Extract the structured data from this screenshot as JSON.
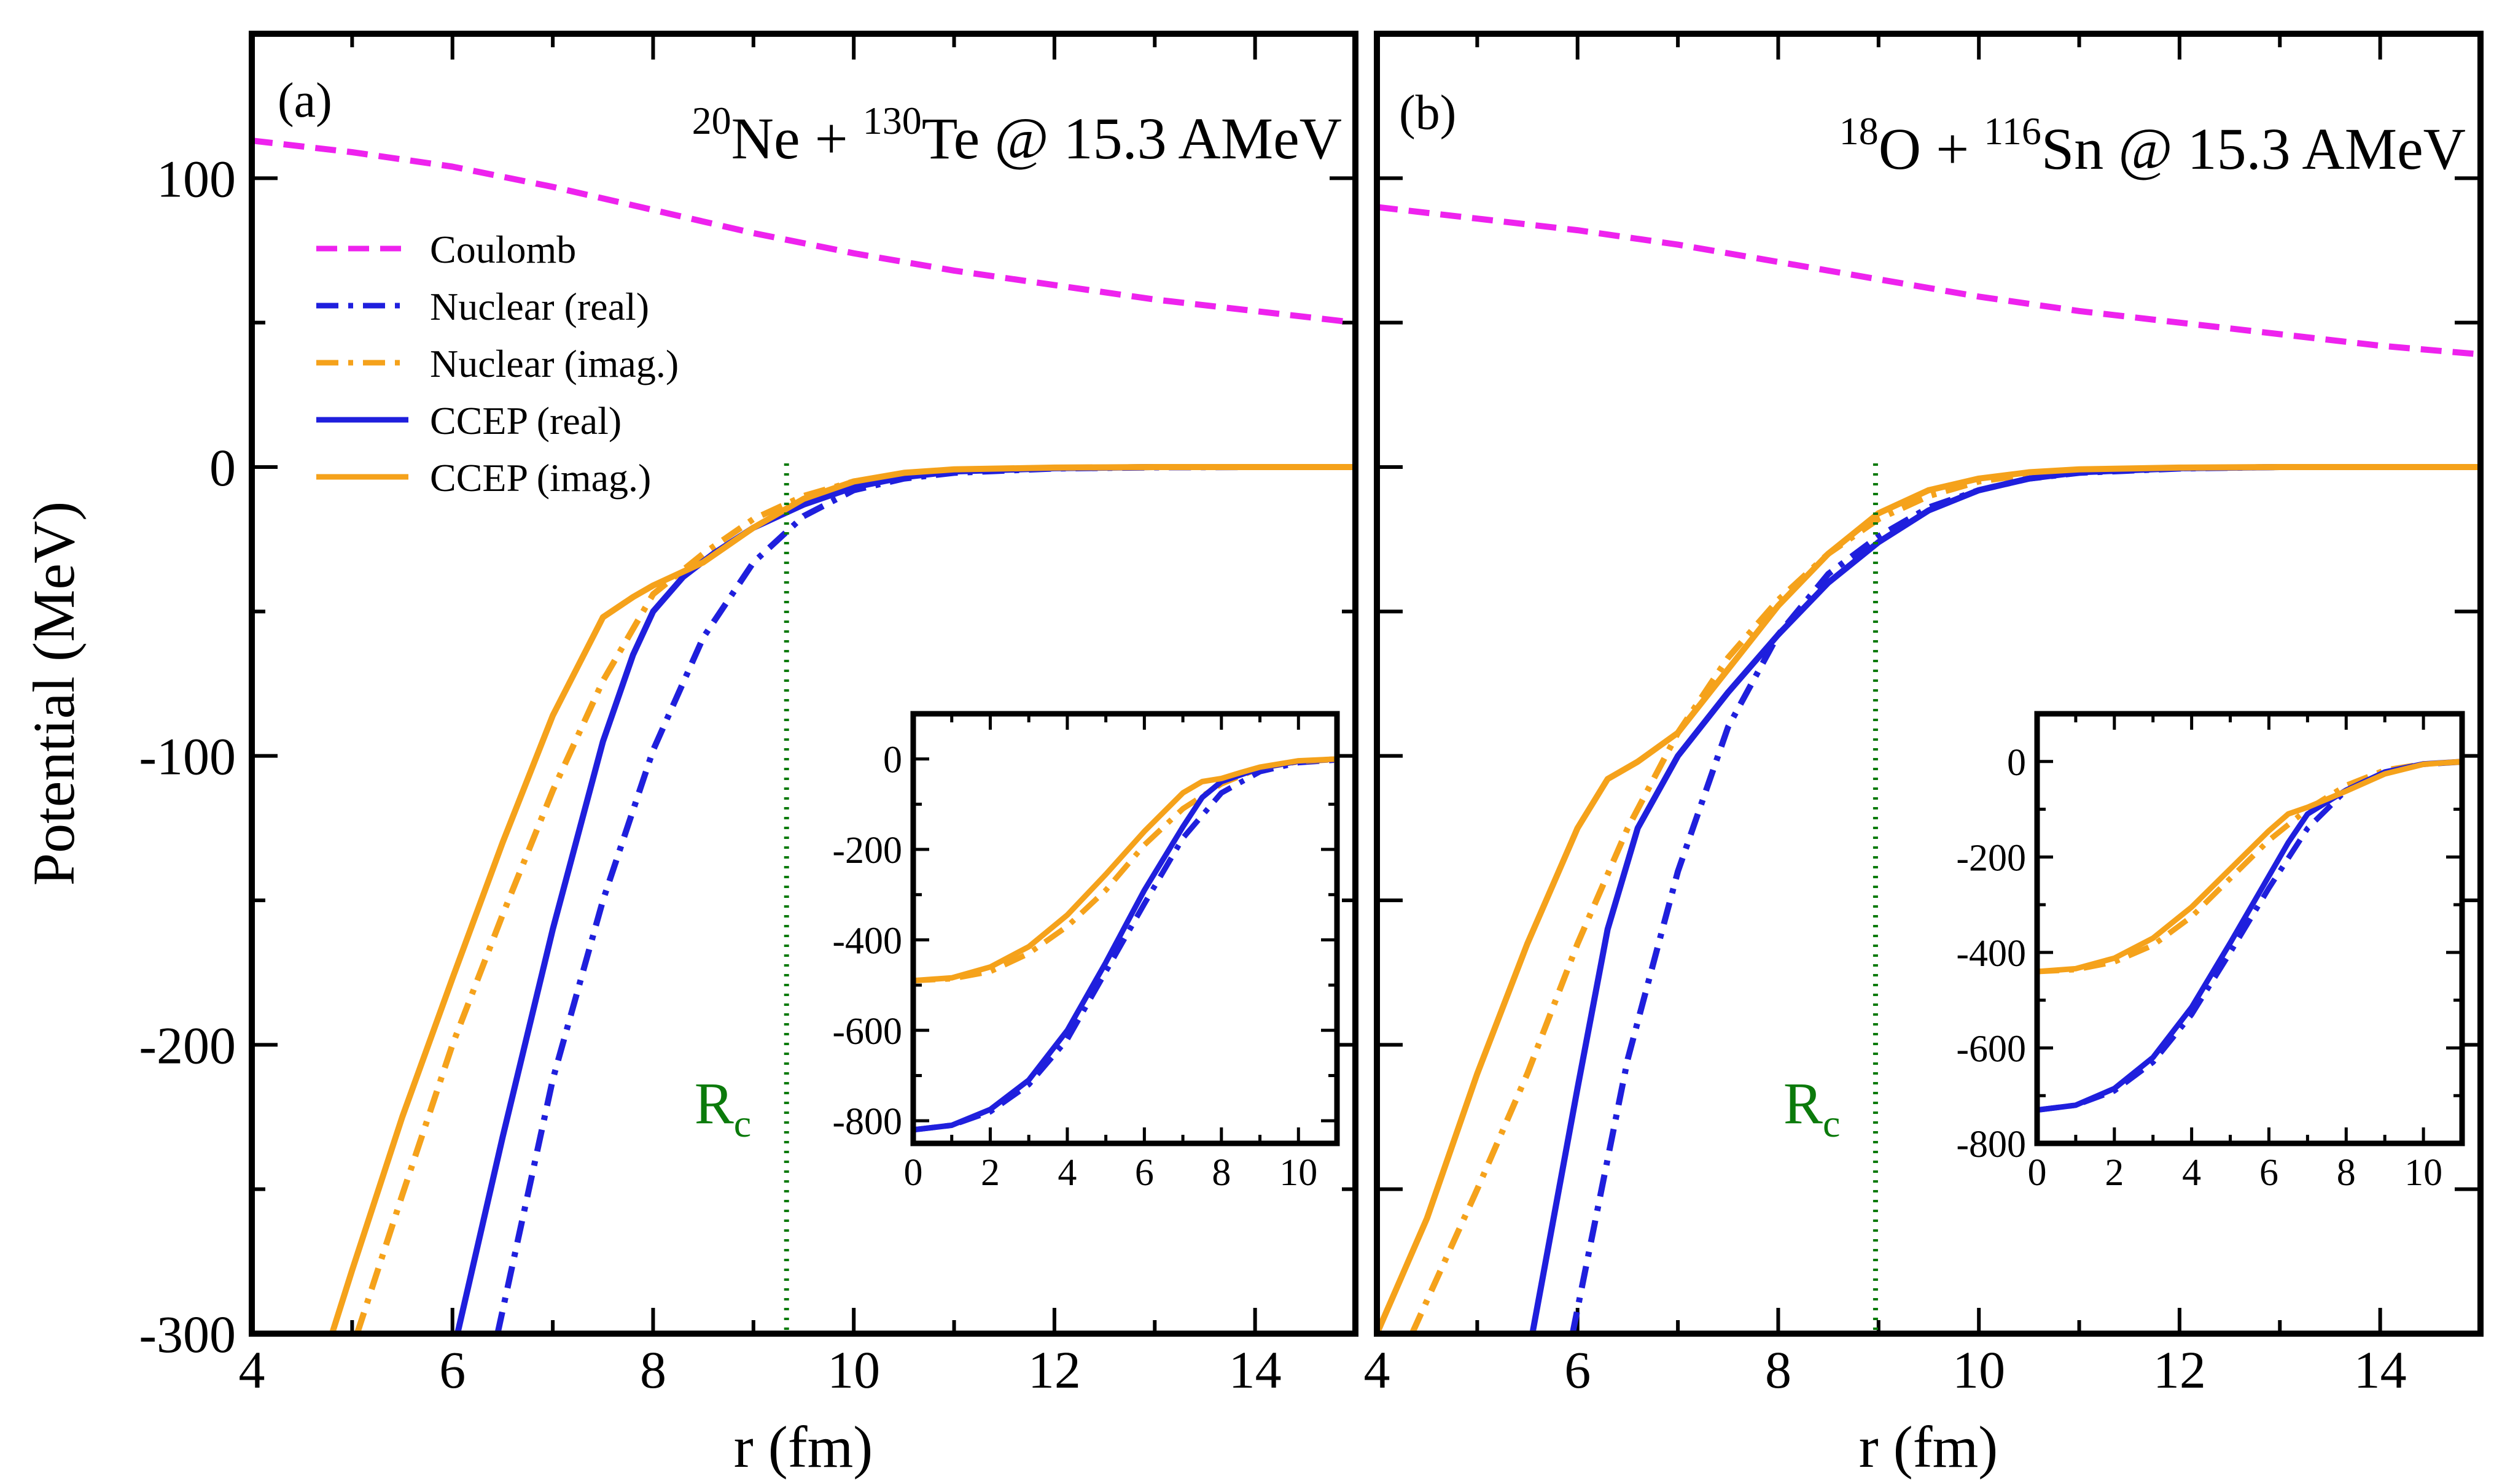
{
  "chart_data": [
    {
      "type": "line",
      "panel_label": "(a)",
      "title_parts": [
        {
          "text": "20",
          "sup": true
        },
        {
          "text": "Ne + ",
          "sup": false
        },
        {
          "text": "130",
          "sup": true
        },
        {
          "text": "Te @ 15.3 AMeV",
          "sup": false
        }
      ],
      "xlabel": "r (fm)",
      "ylabel": "Potential (MeV)",
      "xlim": [
        4,
        15
      ],
      "ylim": [
        -300,
        150
      ],
      "xticks": [
        "4",
        "6",
        "8",
        "10",
        "12",
        "14"
      ],
      "yticks": [
        "-300",
        "-200",
        "-100",
        "0",
        "100"
      ],
      "x_minor_step": 1,
      "y_minor_step": 50,
      "rc": {
        "x": 9.33,
        "label": "R",
        "sub": "c",
        "color": "#0b7a0b"
      },
      "series": [
        {
          "name": "Coulomb",
          "color": "#ee22ee",
          "style": "dash",
          "x": [
            4,
            5,
            6,
            7,
            8,
            9,
            10,
            11,
            12,
            13,
            14,
            15
          ],
          "y": [
            113,
            109,
            104,
            97,
            89,
            81,
            74,
            68,
            63,
            58,
            54,
            50
          ]
        },
        {
          "name": "Nuclear (real)",
          "color": "#1f1fdd",
          "style": "dashdot",
          "x": [
            6.45,
            7.0,
            7.5,
            8.0,
            8.5,
            9.0,
            9.5,
            10.0,
            10.5,
            11.0,
            12.0,
            13.0,
            14.0,
            15.0
          ],
          "y": [
            -300,
            -212,
            -150,
            -98,
            -59,
            -33,
            -17,
            -8,
            -4,
            -2,
            -0.5,
            -0.1,
            0,
            0
          ]
        },
        {
          "name": "Nuclear (imag.)",
          "color": "#f5a21b",
          "style": "dashdot",
          "x": [
            5.05,
            5.5,
            6.0,
            6.5,
            7.0,
            7.5,
            8.0,
            8.5,
            9.0,
            9.5,
            10.0,
            10.5,
            11.0,
            12.0,
            13.0,
            15.0
          ],
          "y": [
            -300,
            -252,
            -200,
            -155,
            -112,
            -74,
            -44,
            -30,
            -18,
            -10,
            -5,
            -2.5,
            -1.2,
            -0.3,
            0,
            0
          ]
        },
        {
          "name": "CCEP (real)",
          "color": "#1f1fdd",
          "style": "solid",
          "x": [
            6.05,
            6.5,
            7.0,
            7.5,
            7.8,
            8.0,
            8.3,
            8.6,
            9.0,
            9.5,
            10.0,
            10.5,
            11.0,
            12.0,
            13.0,
            15.0
          ],
          "y": [
            -300,
            -232,
            -160,
            -95,
            -65,
            -50,
            -38,
            -30,
            -21,
            -13,
            -7,
            -3.5,
            -1.5,
            -0.4,
            0,
            0
          ]
        },
        {
          "name": "CCEP (imag.)",
          "color": "#f5a21b",
          "style": "solid",
          "x": [
            4.8,
            5.0,
            5.5,
            6.0,
            6.5,
            7.0,
            7.5,
            7.8,
            8.0,
            8.5,
            9.0,
            9.5,
            10.0,
            10.5,
            11.0,
            12.0,
            13.0,
            15.0
          ],
          "y": [
            -300,
            -278,
            -225,
            -177,
            -130,
            -86,
            -52,
            -45,
            -41,
            -33,
            -21,
            -11,
            -5,
            -2,
            -0.8,
            -0.2,
            0,
            0
          ]
        }
      ],
      "inset": {
        "xlim": [
          0,
          11
        ],
        "ylim": [
          -850,
          100
        ],
        "xticks": [
          "0",
          "2",
          "4",
          "6",
          "8",
          "10"
        ],
        "yticks": [
          "-800",
          "-600",
          "-400",
          "-200",
          "0"
        ],
        "x_minor_step": 1,
        "y_minor_step": 100,
        "series": [
          {
            "name": "Nuclear (real)",
            "color": "#1f1fdd",
            "style": "dashdot",
            "x": [
              0,
              1,
              2,
              3,
              4,
              5,
              6,
              7,
              8,
              9,
              10,
              11
            ],
            "y": [
              -820,
              -810,
              -780,
              -720,
              -620,
              -470,
              -320,
              -175,
              -75,
              -28,
              -8,
              -2
            ]
          },
          {
            "name": "Nuclear (imag.)",
            "color": "#f5a21b",
            "style": "dashdot",
            "x": [
              0,
              1,
              2,
              3,
              4,
              5,
              6,
              7,
              8,
              9,
              10,
              11
            ],
            "y": [
              -490,
              -486,
              -470,
              -430,
              -370,
              -290,
              -190,
              -110,
              -55,
              -20,
              -6,
              -1
            ]
          },
          {
            "name": "CCEP (real)",
            "color": "#1f1fdd",
            "style": "solid",
            "x": [
              0,
              1,
              2,
              3,
              4,
              5,
              5.5,
              6,
              7,
              7.5,
              8,
              8.5,
              9,
              10,
              11
            ],
            "y": [
              -820,
              -810,
              -775,
              -710,
              -600,
              -450,
              -370,
              -290,
              -150,
              -85,
              -50,
              -35,
              -20,
              -5,
              0
            ]
          },
          {
            "name": "CCEP (imag.)",
            "color": "#f5a21b",
            "style": "solid",
            "x": [
              0,
              1,
              2,
              3,
              4,
              5,
              6,
              7,
              7.5,
              8,
              8.5,
              9,
              10,
              11
            ],
            "y": [
              -490,
              -484,
              -460,
              -415,
              -345,
              -255,
              -160,
              -75,
              -50,
              -43,
              -30,
              -18,
              -4,
              0
            ]
          }
        ]
      },
      "legend": [
        {
          "name": "Coulomb",
          "color": "#ee22ee",
          "style": "dash"
        },
        {
          "name": "Nuclear (real)",
          "color": "#1f1fdd",
          "style": "dashdot"
        },
        {
          "name": "Nuclear (imag.)",
          "color": "#f5a21b",
          "style": "dashdot"
        },
        {
          "name": "CCEP (real)",
          "color": "#1f1fdd",
          "style": "solid"
        },
        {
          "name": "CCEP (imag.)",
          "color": "#f5a21b",
          "style": "solid"
        }
      ],
      "legend_position": "top-left"
    },
    {
      "type": "line",
      "panel_label": "(b)",
      "title_parts": [
        {
          "text": "18",
          "sup": true
        },
        {
          "text": "O + ",
          "sup": false
        },
        {
          "text": "116",
          "sup": true
        },
        {
          "text": "Sn @ 15.3 AMeV",
          "sup": false
        }
      ],
      "xlabel": "r (fm)",
      "ylabel": "",
      "xlim": [
        4,
        15
      ],
      "ylim": [
        -300,
        150
      ],
      "xticks": [
        "4",
        "6",
        "8",
        "10",
        "12",
        "14"
      ],
      "yticks": [],
      "y_tick_values": [
        -250,
        -200,
        -150,
        -100,
        -50,
        0,
        50,
        100
      ],
      "x_minor_step": 1,
      "y_minor_step": 50,
      "rc": {
        "x": 8.97,
        "label": "R",
        "sub": "c",
        "color": "#0b7a0b"
      },
      "series": [
        {
          "name": "Coulomb",
          "color": "#ee22ee",
          "style": "dash",
          "x": [
            4,
            5,
            6,
            7,
            8,
            9,
            10,
            11,
            12,
            13,
            14,
            15
          ],
          "y": [
            90,
            86,
            82,
            77,
            71,
            65,
            59,
            54,
            50,
            46,
            42,
            39
          ]
        },
        {
          "name": "Nuclear (real)",
          "color": "#1f1fdd",
          "style": "dashdot",
          "x": [
            5.95,
            6.5,
            7.0,
            7.5,
            8.0,
            8.5,
            9.0,
            9.5,
            10.0,
            10.5,
            11.0,
            12.0,
            13.0,
            15.0
          ],
          "y": [
            -300,
            -205,
            -140,
            -90,
            -58,
            -37,
            -24,
            -14,
            -8,
            -4,
            -2,
            -0.5,
            0,
            0
          ]
        },
        {
          "name": "Nuclear (imag.)",
          "color": "#f5a21b",
          "style": "dashdot",
          "x": [
            4.35,
            5.0,
            5.5,
            6.0,
            6.5,
            7.0,
            7.5,
            8.0,
            8.5,
            9.0,
            9.5,
            10.0,
            10.5,
            11.0,
            12.0,
            13.0,
            15.0
          ],
          "y": [
            -300,
            -250,
            -210,
            -165,
            -125,
            -92,
            -66,
            -46,
            -30,
            -18,
            -10,
            -5,
            -2.5,
            -1,
            -0.3,
            0,
            0
          ]
        },
        {
          "name": "CCEP (real)",
          "color": "#1f1fdd",
          "style": "solid",
          "x": [
            5.55,
            6.0,
            6.3,
            6.6,
            7.0,
            7.5,
            8.0,
            8.5,
            9.0,
            9.5,
            10.0,
            10.5,
            11.0,
            12.0,
            13.0,
            15.0
          ],
          "y": [
            -300,
            -215,
            -160,
            -125,
            -100,
            -78,
            -58,
            -40,
            -26,
            -15,
            -8,
            -4,
            -1.8,
            -0.4,
            0,
            0
          ]
        },
        {
          "name": "CCEP (imag.)",
          "color": "#f5a21b",
          "style": "solid",
          "x": [
            4.0,
            4.5,
            5.0,
            5.5,
            6.0,
            6.3,
            6.6,
            7.0,
            7.5,
            8.0,
            8.5,
            9.0,
            9.5,
            10.0,
            10.5,
            11.0,
            12.0,
            13.0,
            15.0
          ],
          "y": [
            -300,
            -260,
            -210,
            -165,
            -125,
            -108,
            -102,
            -92,
            -70,
            -48,
            -30,
            -16,
            -8,
            -4,
            -1.8,
            -0.8,
            -0.2,
            0,
            0
          ]
        }
      ],
      "inset": {
        "xlim": [
          0,
          11
        ],
        "ylim": [
          -800,
          100
        ],
        "xticks": [
          "0",
          "2",
          "4",
          "6",
          "8",
          "10"
        ],
        "yticks": [
          "-800",
          "-600",
          "-400",
          "-200",
          "0"
        ],
        "x_minor_step": 1,
        "y_minor_step": 100,
        "series": [
          {
            "name": "Nuclear (real)",
            "color": "#1f1fdd",
            "style": "dashdot",
            "x": [
              0,
              1,
              2,
              3,
              4,
              5,
              6,
              7,
              8,
              9,
              10,
              11
            ],
            "y": [
              -730,
              -720,
              -690,
              -630,
              -530,
              -400,
              -265,
              -140,
              -60,
              -22,
              -6,
              -1
            ]
          },
          {
            "name": "Nuclear (imag.)",
            "color": "#f5a21b",
            "style": "dashdot",
            "x": [
              0,
              1,
              2,
              3,
              4,
              5,
              6,
              7,
              8,
              9,
              10,
              11
            ],
            "y": [
              -440,
              -436,
              -420,
              -385,
              -325,
              -245,
              -165,
              -100,
              -50,
              -18,
              -5,
              -1
            ]
          },
          {
            "name": "CCEP (real)",
            "color": "#1f1fdd",
            "style": "solid",
            "x": [
              0,
              1,
              2,
              3,
              4,
              5,
              6,
              6.5,
              7,
              8,
              9,
              10,
              11
            ],
            "y": [
              -730,
              -720,
              -685,
              -620,
              -515,
              -380,
              -240,
              -170,
              -110,
              -60,
              -22,
              -5,
              0
            ]
          },
          {
            "name": "CCEP (imag.)",
            "color": "#f5a21b",
            "style": "solid",
            "x": [
              0,
              1,
              2,
              3,
              4,
              5,
              6,
              6.5,
              7,
              8,
              9,
              10,
              11
            ],
            "y": [
              -440,
              -434,
              -412,
              -370,
              -305,
              -225,
              -145,
              -110,
              -96,
              -62,
              -26,
              -6,
              0
            ]
          }
        ]
      }
    }
  ]
}
